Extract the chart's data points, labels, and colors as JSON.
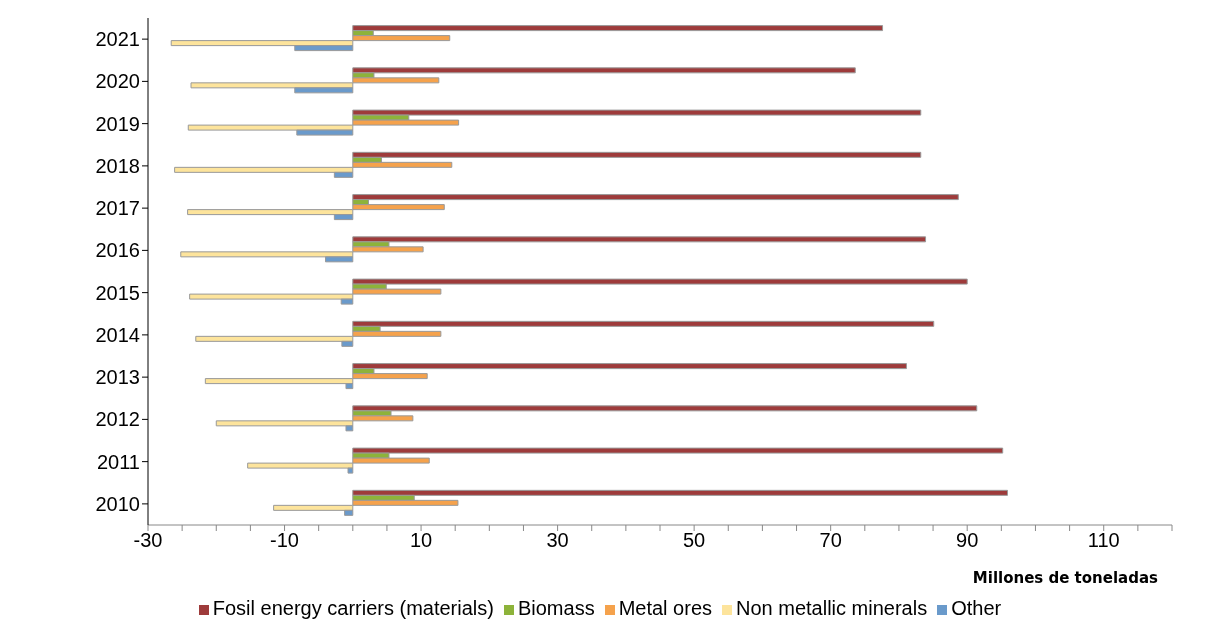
{
  "chart_data": {
    "type": "bar",
    "orientation": "horizontal",
    "xlabel": "Millones de toneladas",
    "categories": [
      "2021",
      "2020",
      "2019",
      "2018",
      "2017",
      "2016",
      "2015",
      "2014",
      "2013",
      "2012",
      "2011",
      "2010"
    ],
    "series": [
      {
        "name": "Fosil energy carriers (materials)",
        "color": "#9e3b3b",
        "values": [
          77.6,
          73.6,
          83.2,
          83.2,
          88.7,
          83.9,
          90.0,
          85.1,
          81.1,
          91.4,
          95.2,
          95.9
        ]
      },
      {
        "name": "Biomass",
        "color": "#8db33a",
        "values": [
          3.0,
          3.1,
          8.2,
          4.2,
          2.3,
          5.3,
          4.9,
          4.0,
          3.1,
          5.6,
          5.3,
          9.0
        ]
      },
      {
        "name": "Metal ores",
        "color": "#f5a24c",
        "values": [
          14.2,
          12.6,
          15.5,
          14.5,
          13.4,
          10.3,
          12.9,
          12.9,
          10.9,
          8.8,
          11.2,
          15.4
        ]
      },
      {
        "name": "Non metallic minerals",
        "color": "#fde49c",
        "values": [
          -26.6,
          -23.7,
          -24.1,
          -26.1,
          -24.2,
          -25.2,
          -23.9,
          -23.0,
          -21.6,
          -20.0,
          -15.4,
          -11.6
        ]
      },
      {
        "name": "Other",
        "color": "#6a9acb",
        "values": [
          -8.5,
          -8.5,
          -8.2,
          -2.7,
          -2.7,
          -4.0,
          -1.7,
          -1.6,
          -1.0,
          -1.0,
          -0.7,
          -1.2
        ]
      }
    ],
    "xlim": [
      -30,
      120
    ],
    "xticks": [
      -30,
      {
        "value": -25,
        "label": null
      },
      {
        "value": -20,
        "label": null
      },
      {
        "value": -15,
        "label": null
      },
      -10,
      {
        "value": -5,
        "label": null
      },
      {
        "value": 0,
        "label": null
      },
      {
        "value": 5,
        "label": null
      },
      10,
      {
        "value": 15,
        "label": null
      },
      {
        "value": 20,
        "label": null
      },
      {
        "value": 25,
        "label": null
      },
      30,
      {
        "value": 35,
        "label": null
      },
      {
        "value": 40,
        "label": null
      },
      {
        "value": 45,
        "label": null
      },
      50,
      {
        "value": 55,
        "label": null
      },
      {
        "value": 60,
        "label": null
      },
      {
        "value": 65,
        "label": null
      },
      70,
      {
        "value": 75,
        "label": null
      },
      {
        "value": 80,
        "label": null
      },
      {
        "value": 85,
        "label": null
      },
      90,
      {
        "value": 95,
        "label": null
      },
      {
        "value": 100,
        "label": null
      },
      {
        "value": 105,
        "label": null
      },
      110,
      {
        "value": 115,
        "label": null
      },
      {
        "value": 120,
        "label": null
      }
    ],
    "grid": false,
    "legend": "bottom"
  }
}
